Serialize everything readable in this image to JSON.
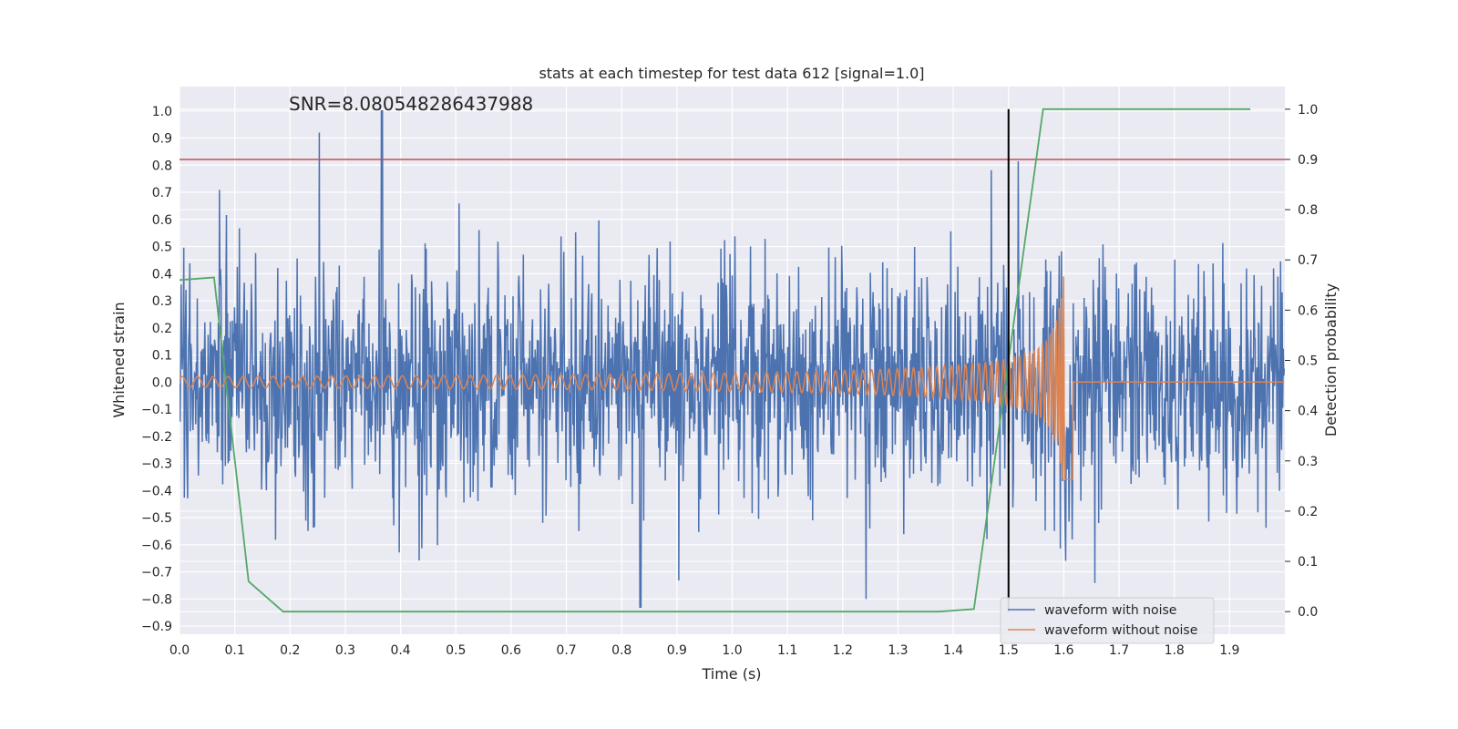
{
  "chart_data": {
    "type": "line",
    "title": "stats at each timestep for test data 612 [signal=1.0]",
    "xlabel": "Time (s)",
    "ylabel": "Whitened strain",
    "ylabel_right": "Detection probability",
    "annotation": "SNR=8.080548286437988",
    "xlim": [
      0.0,
      2.0
    ],
    "ylim": [
      -0.93,
      1.09
    ],
    "ylim_right": [
      -0.045,
      1.045
    ],
    "x_ticks": [
      "0.0",
      "0.1",
      "0.2",
      "0.3",
      "0.4",
      "0.5",
      "0.6",
      "0.7",
      "0.8",
      "0.9",
      "1.0",
      "1.1",
      "1.2",
      "1.3",
      "1.4",
      "1.5",
      "1.6",
      "1.7",
      "1.8",
      "1.9"
    ],
    "y_ticks": [
      "1.0",
      "0.9",
      "0.8",
      "0.7",
      "0.6",
      "0.5",
      "0.4",
      "0.3",
      "0.2",
      "0.1",
      "0.0",
      "-0.1",
      "-0.2",
      "-0.3",
      "-0.4",
      "-0.5",
      "-0.6",
      "-0.7",
      "-0.8",
      "-0.9"
    ],
    "y_ticks_right": [
      "1.0",
      "0.9",
      "0.8",
      "0.7",
      "0.6",
      "0.5",
      "0.4",
      "0.3",
      "0.2",
      "0.1",
      "0.0"
    ],
    "grid": true,
    "legend_position": "lower-right",
    "colors": {
      "noise": "#4c72b0",
      "clean": "#dd8452",
      "probability": "#55a868",
      "threshold": "#c44e52",
      "marker": "#000000",
      "background": "#eaeaf2"
    },
    "series": [
      {
        "name": "waveform with noise",
        "description": "noisy whitened strain, amplitude about ±0.4 with spikes up to 1.0 and down to -0.83, 0.0–2.0 s"
      },
      {
        "name": "waveform without noise",
        "description": "chirp signal, amplitude rising from 0.02 to 0.39, frequency increasing, merging near 1.6 s then flat at 0"
      }
    ],
    "probability": {
      "x": [
        0.0,
        0.0625,
        0.125,
        0.1875,
        0.25,
        1.375,
        1.4375,
        1.5,
        1.5625,
        1.9375
      ],
      "y": [
        0.66,
        0.665,
        0.06,
        0.0,
        0.0,
        0.0,
        0.005,
        0.5,
        1.0,
        1.0
      ]
    },
    "threshold_y": 0.9,
    "vline_x": 1.5,
    "vline_range": [
      0.0,
      1.0
    ]
  }
}
